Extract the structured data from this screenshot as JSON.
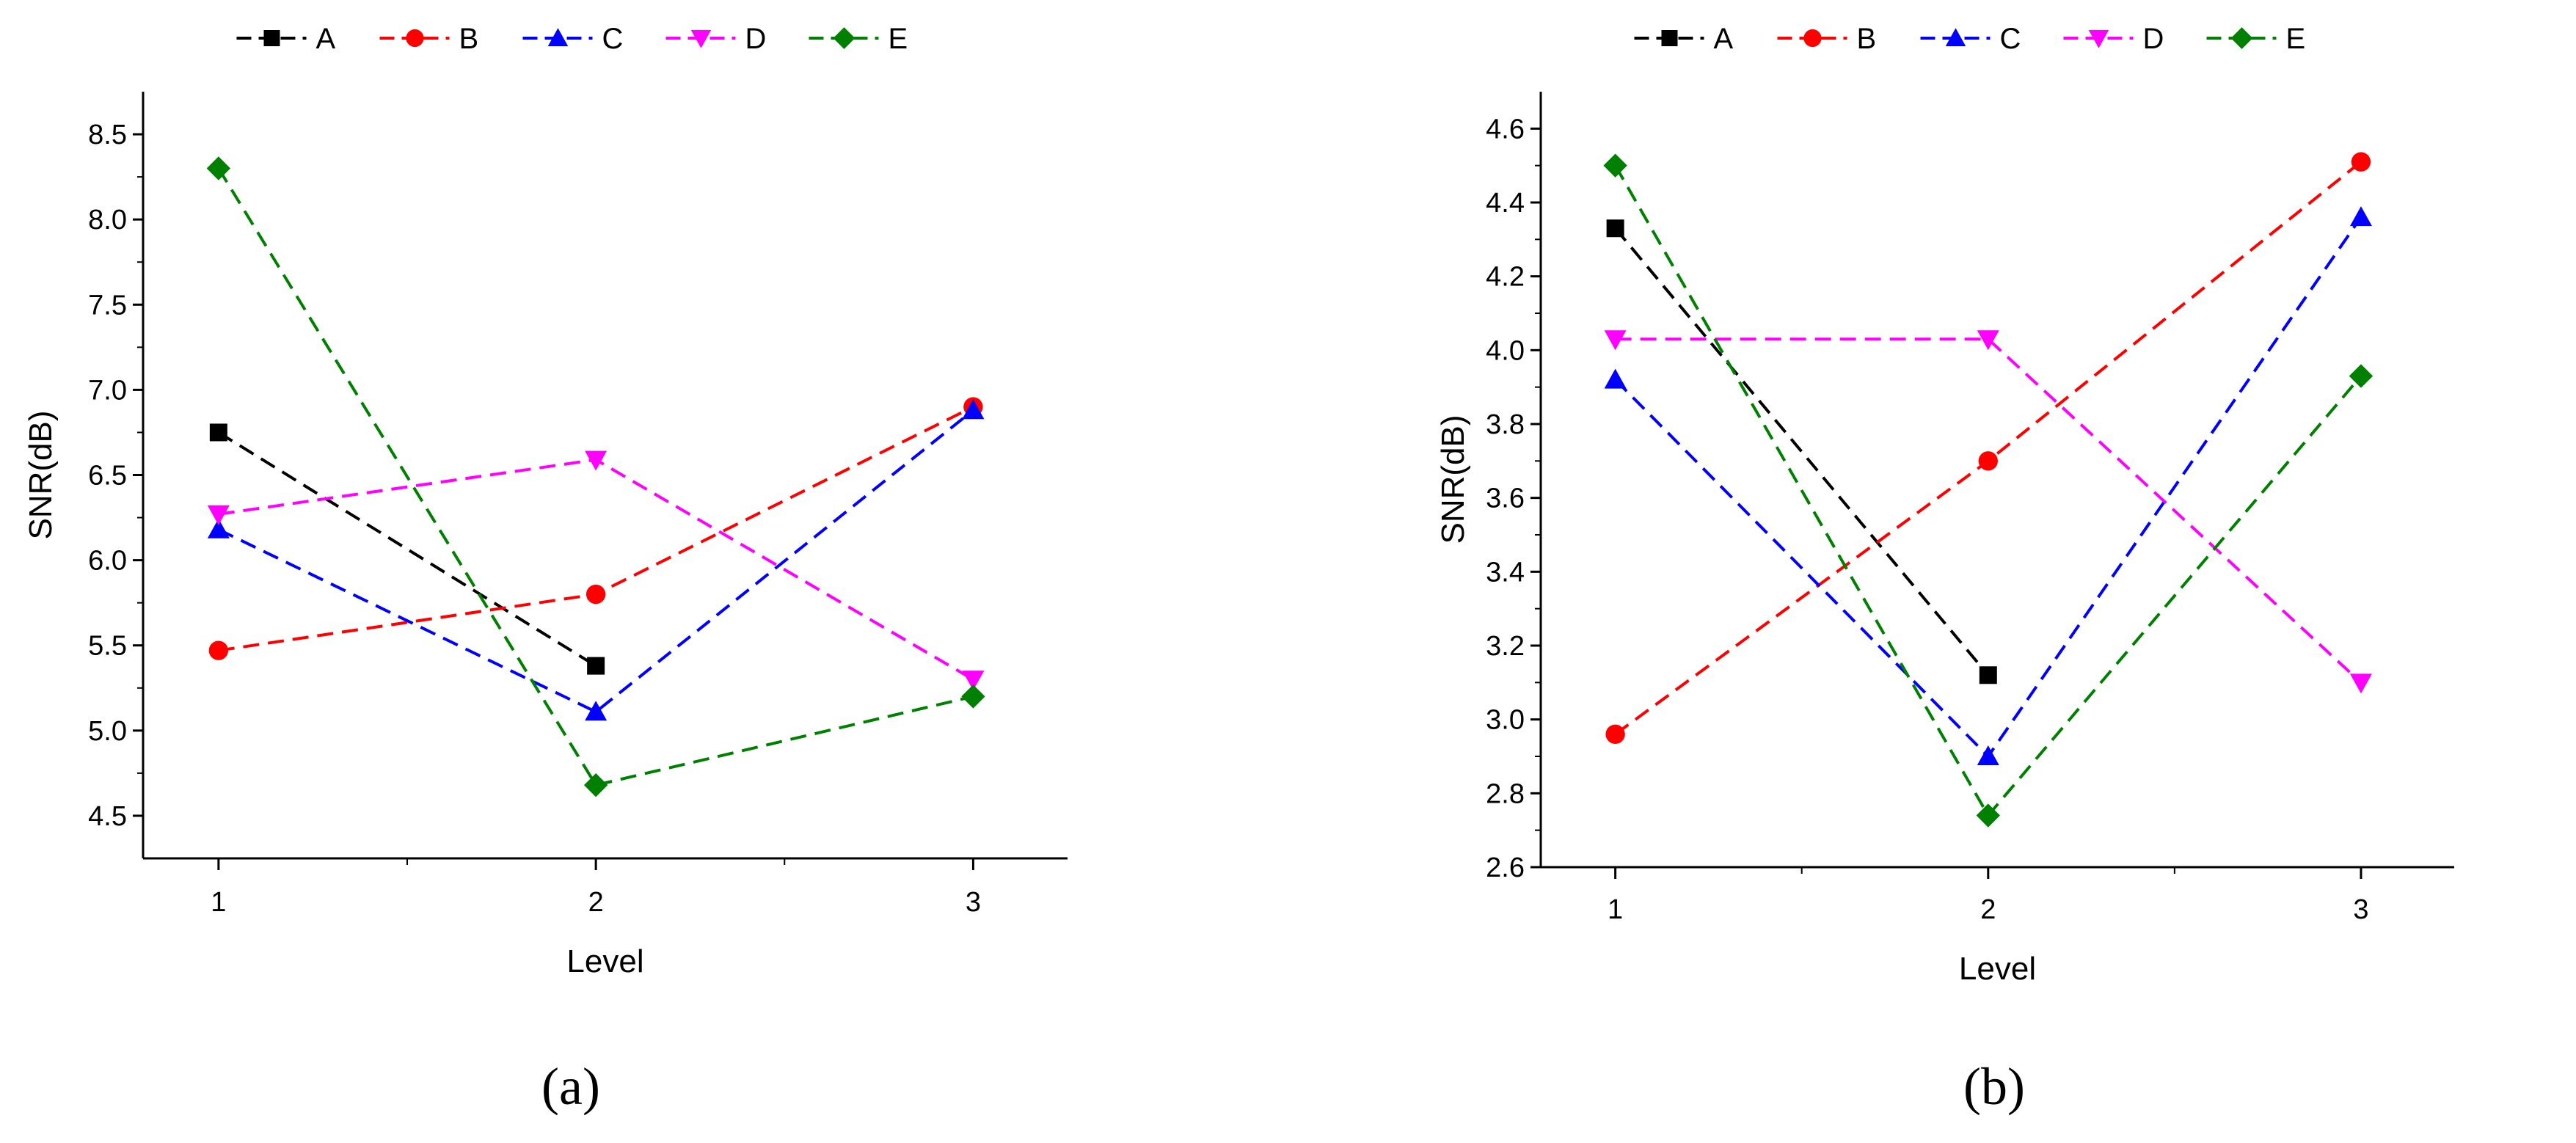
{
  "chart_data": [
    {
      "type": "line",
      "caption": "a",
      "xlabel": "Level",
      "ylabel": "SNR(dB)",
      "x": [
        1,
        2,
        3
      ],
      "x_tick_labels": [
        "1",
        "2",
        "3"
      ],
      "xlim": [
        0.8,
        3.25
      ],
      "ylim": [
        4.25,
        8.75
      ],
      "y_ticks": [
        4.5,
        5.0,
        5.5,
        6.0,
        6.5,
        7.0,
        7.5,
        8.0,
        8.5
      ],
      "y_tick_labels": [
        "4.5",
        "5.0",
        "5.5",
        "6.0",
        "6.5",
        "7.0",
        "7.5",
        "8.0",
        "8.5"
      ],
      "legend_position": "top",
      "series": [
        {
          "name": "A",
          "color": "#000000",
          "marker": "square",
          "values": [
            6.75,
            5.38,
            null
          ]
        },
        {
          "name": "B",
          "color": "#ff0000",
          "marker": "circle",
          "values": [
            5.47,
            5.8,
            6.9
          ]
        },
        {
          "name": "C",
          "color": "#0000ff",
          "marker": "triangle-up",
          "values": [
            6.18,
            5.11,
            6.88
          ]
        },
        {
          "name": "D",
          "color": "#ff00ff",
          "marker": "triangle-down",
          "values": [
            6.27,
            6.59,
            5.3
          ]
        },
        {
          "name": "E",
          "color": "#008000",
          "marker": "diamond",
          "values": [
            8.3,
            4.68,
            5.2
          ]
        }
      ]
    },
    {
      "type": "line",
      "caption": "b",
      "xlabel": "Level",
      "ylabel": "SNR(dB)",
      "x": [
        1,
        2,
        3
      ],
      "x_tick_labels": [
        "1",
        "2",
        "3"
      ],
      "xlim": [
        0.8,
        3.25
      ],
      "ylim": [
        2.6,
        4.7
      ],
      "y_ticks": [
        2.6,
        2.8,
        3.0,
        3.2,
        3.4,
        3.6,
        3.8,
        4.0,
        4.2,
        4.4,
        4.6
      ],
      "y_tick_labels": [
        "2.6",
        "2.8",
        "3.0",
        "3.2",
        "3.4",
        "3.6",
        "3.8",
        "4.0",
        "4.2",
        "4.4",
        "4.6"
      ],
      "legend_position": "top",
      "series": [
        {
          "name": "A",
          "color": "#000000",
          "marker": "square",
          "values": [
            4.33,
            3.12,
            null
          ]
        },
        {
          "name": "B",
          "color": "#ff0000",
          "marker": "circle",
          "values": [
            2.96,
            3.7,
            4.51
          ]
        },
        {
          "name": "C",
          "color": "#0000ff",
          "marker": "triangle-up",
          "values": [
            3.92,
            2.9,
            4.36
          ]
        },
        {
          "name": "D",
          "color": "#ff00ff",
          "marker": "triangle-down",
          "values": [
            4.03,
            4.03,
            3.1
          ]
        },
        {
          "name": "E",
          "color": "#008000",
          "marker": "diamond",
          "values": [
            4.5,
            2.74,
            3.93
          ]
        }
      ]
    }
  ],
  "captions": [
    "(a)",
    "(b)"
  ]
}
